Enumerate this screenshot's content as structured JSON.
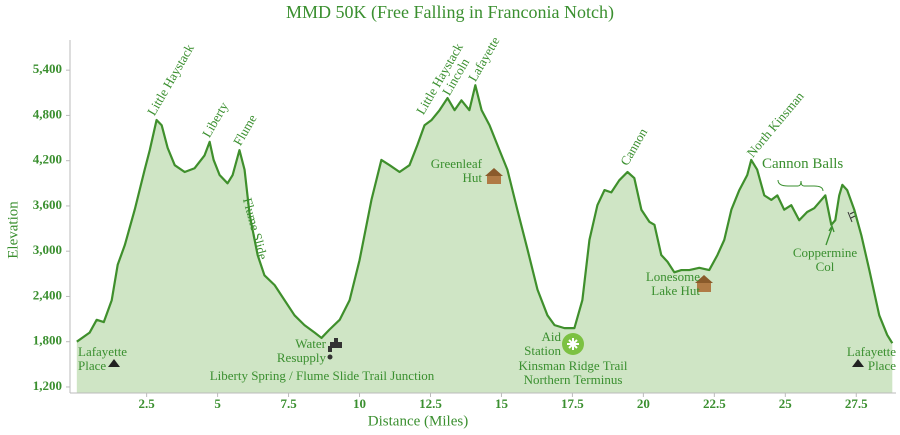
{
  "chart_data": {
    "type": "area",
    "title": "MMD 50K (Free Falling in Franconia Notch)",
    "x_label": "Distance (Miles)",
    "y_label": "Elevation",
    "xlim": [
      -0.2,
      28.9
    ],
    "ylim": [
      1120,
      5800
    ],
    "xticks": [
      2.5,
      5,
      7.5,
      10,
      12.5,
      15,
      17.5,
      20,
      22.5,
      25,
      27.5
    ],
    "yticks": [
      {
        "value": 1200,
        "label": "1,200"
      },
      {
        "value": 1800,
        "label": "1,800"
      },
      {
        "value": 2400,
        "label": "2,400"
      },
      {
        "value": 3000,
        "label": "3,000"
      },
      {
        "value": 3600,
        "label": "3,600"
      },
      {
        "value": 4200,
        "label": "4,200"
      },
      {
        "value": 4800,
        "label": "4,800"
      },
      {
        "value": 5400,
        "label": "5,400"
      }
    ],
    "grid": false,
    "series": [
      {
        "color": "#3f8f2c",
        "fill": "#cfe5c5",
        "x": [
          0.04,
          0.49,
          0.74,
          0.99,
          1.27,
          1.48,
          1.73,
          2.08,
          2.43,
          2.61,
          2.85,
          3.03,
          3.24,
          3.49,
          3.84,
          4.19,
          4.54,
          4.72,
          4.86,
          5.07,
          5.35,
          5.53,
          5.77,
          5.95,
          6.13,
          6.41,
          6.65,
          7.01,
          7.36,
          7.71,
          8.06,
          8.42,
          8.66,
          8.94,
          9.3,
          9.65,
          10.0,
          10.42,
          10.77,
          11.06,
          11.41,
          11.76,
          12.04,
          12.29,
          12.54,
          12.82,
          13.1,
          13.35,
          13.59,
          13.87,
          14.08,
          14.3,
          14.58,
          14.93,
          15.21,
          15.56,
          15.92,
          16.27,
          16.62,
          16.87,
          17.22,
          17.57,
          17.85,
          18.1,
          18.38,
          18.63,
          18.87,
          19.15,
          19.44,
          19.68,
          19.93,
          20.21,
          20.39,
          20.63,
          20.85,
          21.09,
          21.34,
          21.62,
          21.97,
          22.32,
          22.61,
          22.85,
          23.1,
          23.38,
          23.66,
          23.8,
          24.01,
          24.26,
          24.51,
          24.72,
          24.96,
          25.21,
          25.49,
          25.77,
          26.02,
          26.27,
          26.41,
          26.62,
          26.76,
          26.9,
          27.01,
          27.18,
          27.43,
          27.68,
          27.96,
          28.31,
          28.59,
          28.77
        ],
        "values": [
          1800,
          1920,
          2090,
          2060,
          2350,
          2820,
          3080,
          3550,
          4080,
          4340,
          4740,
          4670,
          4370,
          4140,
          4050,
          4100,
          4270,
          4450,
          4210,
          4010,
          3900,
          4010,
          4340,
          4080,
          3480,
          2950,
          2680,
          2550,
          2350,
          2150,
          2020,
          1920,
          1850,
          1960,
          2090,
          2350,
          2880,
          3680,
          4210,
          4140,
          4050,
          4140,
          4410,
          4670,
          4740,
          4870,
          5030,
          4870,
          5000,
          4870,
          5200,
          4870,
          4670,
          4340,
          4080,
          3550,
          3020,
          2490,
          2150,
          2020,
          1980,
          1980,
          2350,
          3150,
          3610,
          3810,
          3780,
          3940,
          4050,
          3970,
          3550,
          3390,
          3350,
          2950,
          2860,
          2720,
          2750,
          2750,
          2780,
          2750,
          2950,
          3150,
          3550,
          3810,
          4010,
          4210,
          4080,
          3740,
          3680,
          3740,
          3550,
          3610,
          3410,
          3520,
          3570,
          3680,
          3740,
          3350,
          3410,
          3740,
          3880,
          3810,
          3550,
          3210,
          2750,
          2150,
          1890,
          1780
        ]
      }
    ],
    "annotations": [
      "Little Haystack",
      "Liberty",
      "Flume",
      "Flume Slide",
      "Little Haystack",
      "Lincoln",
      "Lafayette",
      "Greenleaf Hut",
      "Cannon",
      "North Kinsman",
      "Cannon Balls",
      "Coppermine Col",
      "Lonesome Lake Hut",
      "Water Resupply",
      "Aid Station",
      "Kinsman Ridge Trail Northern Terminus",
      "Liberty Spring / Flume Slide Trail Junction",
      "Lafayette Place",
      "Lafayette Place"
    ]
  }
}
